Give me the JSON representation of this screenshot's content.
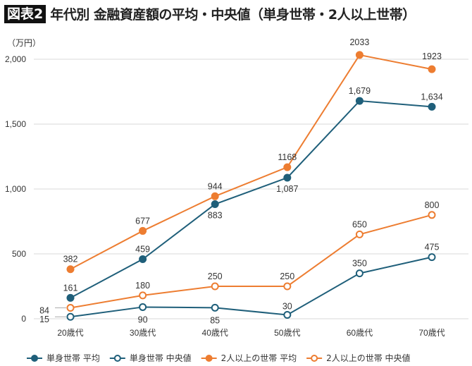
{
  "title": {
    "badge": "図表2",
    "text": "年代別 金融資産額の平均・中央値（単身世帯・2人以上世帯）"
  },
  "chart_data": {
    "type": "line",
    "title": "年代別 金融資産額の平均・中央値（単身世帯・2人以上世帯）",
    "unit_label": "（万円）",
    "categories": [
      "20歳代",
      "30歳代",
      "40歳代",
      "50歳代",
      "60歳代",
      "70歳代"
    ],
    "ylim": [
      0,
      2000
    ],
    "yticks": [
      0,
      500,
      1000,
      1500,
      2000
    ],
    "ytick_labels": [
      "0",
      "500",
      "1,000",
      "1,500",
      "2,000"
    ],
    "grid": true,
    "legend_position": "bottom",
    "series": [
      {
        "name": "単身世帯 平均",
        "values": [
          161,
          459,
          883,
          1087,
          1679,
          1634
        ],
        "labels": [
          "161",
          "459",
          "883",
          "1,087",
          "1,679",
          "1,634"
        ],
        "color": "#1f5f7a",
        "marker": "filled"
      },
      {
        "name": "単身世帯 中央値",
        "values": [
          15,
          90,
          85,
          30,
          350,
          475
        ],
        "labels": [
          "15",
          "90",
          "85",
          "30",
          "350",
          "475"
        ],
        "color": "#1f5f7a",
        "marker": "hollow"
      },
      {
        "name": "2人以上の世帯 平均",
        "values": [
          382,
          677,
          944,
          1168,
          2033,
          1923
        ],
        "labels": [
          "382",
          "677",
          "944",
          "1168",
          "2033",
          "1923"
        ],
        "color": "#ed7d31",
        "marker": "filled"
      },
      {
        "name": "2人以上の世帯 中央値",
        "values": [
          84,
          180,
          250,
          250,
          650,
          800
        ],
        "labels": [
          "84",
          "180",
          "250",
          "250",
          "650",
          "800"
        ],
        "color": "#ed7d31",
        "marker": "hollow"
      }
    ]
  }
}
